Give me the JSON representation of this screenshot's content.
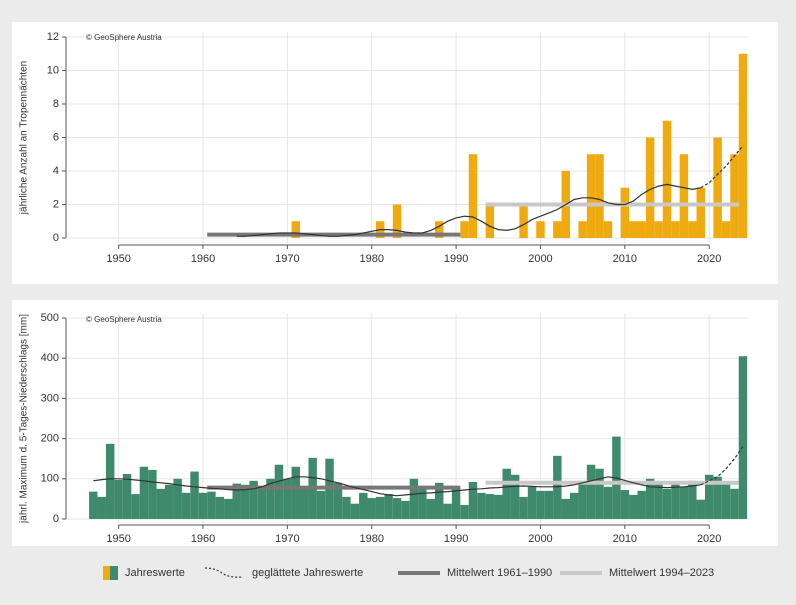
{
  "legend": {
    "bars": "Jahreswerte",
    "smooth": "geglättete Jahreswerte",
    "mean1": "Mittelwert 1961–1990",
    "mean2": "Mittelwert 1994–2023"
  },
  "chart_data": [
    {
      "type": "bar",
      "annotation": "© GeoSphere Austria",
      "ylabel": "jährliche Anzahl an Tropennächten",
      "color": "#eeaa0e",
      "x": [
        1947,
        1948,
        1949,
        1950,
        1951,
        1952,
        1953,
        1954,
        1955,
        1956,
        1957,
        1958,
        1959,
        1960,
        1961,
        1962,
        1963,
        1964,
        1965,
        1966,
        1967,
        1968,
        1969,
        1970,
        1971,
        1972,
        1973,
        1974,
        1975,
        1976,
        1977,
        1978,
        1979,
        1980,
        1981,
        1982,
        1983,
        1984,
        1985,
        1986,
        1987,
        1988,
        1989,
        1990,
        1991,
        1992,
        1993,
        1994,
        1995,
        1996,
        1997,
        1998,
        1999,
        2000,
        2001,
        2002,
        2003,
        2004,
        2005,
        2006,
        2007,
        2008,
        2009,
        2010,
        2011,
        2012,
        2013,
        2014,
        2015,
        2016,
        2017,
        2018,
        2019,
        2020,
        2021,
        2022,
        2023,
        2024
      ],
      "values": [
        0,
        0,
        0,
        0,
        0,
        0,
        0,
        0,
        0,
        0,
        0,
        0,
        0,
        0,
        0,
        0,
        0,
        0,
        0,
        0,
        0,
        0,
        0,
        0,
        1,
        0,
        0,
        0,
        0,
        0,
        0,
        0,
        0,
        0,
        1,
        0,
        2,
        0,
        0,
        0,
        0,
        1,
        0,
        0,
        1,
        5,
        0,
        2,
        0,
        0,
        0,
        2,
        0,
        1,
        0,
        1,
        4,
        0,
        1,
        5,
        5,
        1,
        0,
        3,
        1,
        1,
        6,
        1,
        7,
        1,
        5,
        1,
        3,
        0,
        6,
        1,
        5,
        11
      ],
      "smooth": {
        "values": [
          null,
          null,
          null,
          null,
          null,
          null,
          null,
          null,
          null,
          null,
          null,
          null,
          null,
          null,
          null,
          null,
          null,
          0.1,
          0.1,
          0.15,
          0.2,
          0.25,
          0.3,
          0.3,
          0.3,
          0.25,
          0.2,
          0.15,
          0.1,
          0.1,
          0.15,
          0.2,
          0.3,
          0.4,
          0.5,
          0.5,
          0.45,
          0.35,
          0.3,
          0.3,
          0.45,
          0.7,
          1.0,
          1.2,
          1.3,
          1.25,
          1.0,
          0.7,
          0.5,
          0.45,
          0.55,
          0.8,
          1.1,
          1.3,
          1.5,
          1.7,
          2.0,
          2.3,
          2.4,
          2.4,
          2.3,
          2.1,
          2.0,
          2.0,
          2.2,
          2.6,
          2.9,
          3.1,
          3.2,
          3.1,
          3.0,
          2.9,
          3.0,
          null,
          null,
          null,
          null,
          null
        ],
        "dashed_values": [
          null,
          null,
          null,
          null,
          null,
          null,
          null,
          null,
          null,
          null,
          null,
          null,
          null,
          null,
          null,
          null,
          null,
          null,
          null,
          null,
          null,
          null,
          null,
          null,
          null,
          null,
          null,
          null,
          null,
          null,
          null,
          null,
          null,
          null,
          null,
          null,
          null,
          null,
          null,
          null,
          null,
          null,
          null,
          null,
          null,
          null,
          null,
          null,
          null,
          null,
          null,
          null,
          null,
          null,
          null,
          null,
          null,
          null,
          null,
          null,
          null,
          null,
          null,
          null,
          null,
          null,
          null,
          null,
          null,
          null,
          null,
          null,
          3.0,
          3.3,
          3.8,
          4.3,
          4.9,
          5.5
        ]
      },
      "means": [
        {
          "from": 1961,
          "to": 1990,
          "value": 0.2
        },
        {
          "from": 1994,
          "to": 2023,
          "value": 2.0
        }
      ],
      "xlim": [
        1944,
        2024.6
      ],
      "xticks": [
        1950,
        1960,
        1970,
        1980,
        1990,
        2000,
        2010,
        2020
      ],
      "ylim": [
        -0.3,
        12.3
      ],
      "yticks": [
        0,
        2,
        4,
        6,
        8,
        10,
        12
      ],
      "grid": true
    },
    {
      "type": "bar",
      "annotation": "© GeoSphere Austria",
      "ylabel": "jährl. Maximum d. 5-Tages-Niederschlags [mm]",
      "color": "#3f8a6c",
      "x": [
        1947,
        1948,
        1949,
        1950,
        1951,
        1952,
        1953,
        1954,
        1955,
        1956,
        1957,
        1958,
        1959,
        1960,
        1961,
        1962,
        1963,
        1964,
        1965,
        1966,
        1967,
        1968,
        1969,
        1970,
        1971,
        1972,
        1973,
        1974,
        1975,
        1976,
        1977,
        1978,
        1979,
        1980,
        1981,
        1982,
        1983,
        1984,
        1985,
        1986,
        1987,
        1988,
        1989,
        1990,
        1991,
        1992,
        1993,
        1994,
        1995,
        1996,
        1997,
        1998,
        1999,
        2000,
        2001,
        2002,
        2003,
        2004,
        2005,
        2006,
        2007,
        2008,
        2009,
        2010,
        2011,
        2012,
        2013,
        2014,
        2015,
        2016,
        2017,
        2018,
        2019,
        2020,
        2021,
        2022,
        2023,
        2024
      ],
      "values": [
        68,
        55,
        187,
        97,
        112,
        62,
        130,
        122,
        75,
        85,
        100,
        65,
        118,
        65,
        68,
        55,
        50,
        88,
        85,
        95,
        80,
        100,
        135,
        100,
        130,
        75,
        152,
        70,
        150,
        90,
        55,
        38,
        65,
        52,
        55,
        62,
        52,
        45,
        100,
        80,
        50,
        90,
        38,
        80,
        35,
        92,
        65,
        62,
        60,
        125,
        110,
        55,
        80,
        70,
        70,
        157,
        50,
        65,
        95,
        135,
        125,
        80,
        205,
        72,
        60,
        70,
        100,
        90,
        75,
        90,
        80,
        95,
        48,
        110,
        105,
        88,
        75,
        405
      ],
      "smooth": {
        "values": [
          95,
          98,
          100,
          100,
          99,
          97,
          95,
          92,
          90,
          88,
          85,
          82,
          80,
          78,
          76,
          75,
          73,
          72,
          73,
          75,
          80,
          88,
          94,
          100,
          105,
          105,
          103,
          100,
          95,
          90,
          84,
          78,
          73,
          68,
          63,
          60,
          58,
          60,
          62,
          64,
          65,
          67,
          68,
          70,
          72,
          74,
          75,
          77,
          78,
          80,
          81,
          82,
          81,
          80,
          80,
          80,
          82,
          85,
          90,
          95,
          100,
          105,
          102,
          96,
          90,
          85,
          80,
          79,
          78,
          79,
          80,
          82,
          85,
          null,
          null,
          null,
          null,
          null
        ],
        "dashed_values": [
          null,
          null,
          null,
          null,
          null,
          null,
          null,
          null,
          null,
          null,
          null,
          null,
          null,
          null,
          null,
          null,
          null,
          null,
          null,
          null,
          null,
          null,
          null,
          null,
          null,
          null,
          null,
          null,
          null,
          null,
          null,
          null,
          null,
          null,
          null,
          null,
          null,
          null,
          null,
          null,
          null,
          null,
          null,
          null,
          null,
          null,
          null,
          null,
          null,
          null,
          null,
          null,
          null,
          null,
          null,
          null,
          null,
          null,
          null,
          null,
          null,
          null,
          null,
          null,
          null,
          null,
          null,
          null,
          null,
          null,
          null,
          null,
          85,
          95,
          105,
          125,
          150,
          180
        ]
      },
      "means": [
        {
          "from": 1961,
          "to": 1990,
          "value": 78
        },
        {
          "from": 1994,
          "to": 2023,
          "value": 90
        }
      ],
      "xlim": [
        1944,
        2024.6
      ],
      "xticks": [
        1950,
        1960,
        1970,
        1980,
        1990,
        2000,
        2010,
        2020
      ],
      "ylim": [
        -10,
        510
      ],
      "yticks": [
        0,
        100,
        200,
        300,
        400,
        500
      ],
      "grid": true
    }
  ]
}
